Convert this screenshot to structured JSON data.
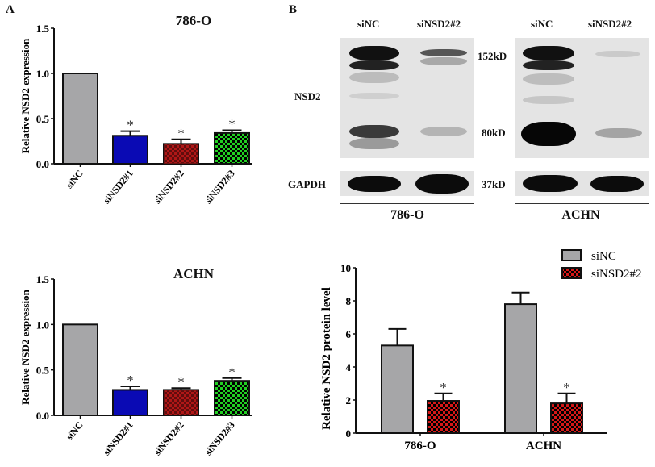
{
  "panels": {
    "a": "A",
    "b": "B"
  },
  "chart_data": [
    {
      "type": "bar",
      "title": "786-O",
      "xlabel": "",
      "ylabel": "Relative NSD2 expression",
      "ylim": [
        0,
        1.5
      ],
      "yticks": [
        "0.0",
        "0.5",
        "1.0",
        "1.5"
      ],
      "categories": [
        "siNC",
        "siNSD2#1",
        "siNSD2#2",
        "siNSD2#3"
      ],
      "values": [
        1.0,
        0.31,
        0.22,
        0.34
      ],
      "errors": [
        0,
        0.05,
        0.05,
        0.03
      ],
      "significance": [
        "",
        "*",
        "*",
        "*"
      ],
      "colors": [
        "#a6a6a8",
        "#0a0ab4",
        "#b01818",
        "#22d022"
      ],
      "grid": false
    },
    {
      "type": "bar",
      "title": "ACHN",
      "xlabel": "",
      "ylabel": "Relative NSD2 expression",
      "ylim": [
        0,
        1.5
      ],
      "yticks": [
        "0.0",
        "0.5",
        "1.0",
        "1.5"
      ],
      "categories": [
        "siNC",
        "siNSD2#1",
        "siNSD2#2",
        "siNSD2#3"
      ],
      "values": [
        1.0,
        0.28,
        0.28,
        0.38
      ],
      "errors": [
        0,
        0.04,
        0.02,
        0.03
      ],
      "significance": [
        "",
        "*",
        "*",
        "*"
      ],
      "colors": [
        "#a6a6a8",
        "#0a0ab4",
        "#b01818",
        "#22d022"
      ],
      "grid": false
    },
    {
      "type": "bar",
      "title": "",
      "xlabel": "",
      "ylabel": "Relative NSD2 protein level",
      "ylim": [
        0,
        10
      ],
      "yticks": [
        "0",
        "2",
        "4",
        "6",
        "8",
        "10"
      ],
      "categories": [
        "786-O",
        "ACHN"
      ],
      "series": [
        {
          "name": "siNC",
          "values": [
            5.3,
            7.8
          ],
          "errors": [
            1.0,
            0.7
          ],
          "color": "#a6a6a8",
          "significance": [
            "",
            ""
          ]
        },
        {
          "name": "siNSD2#2",
          "values": [
            1.95,
            1.8
          ],
          "errors": [
            0.45,
            0.6
          ],
          "color": "#d81818",
          "significance": [
            "*",
            "*"
          ]
        }
      ],
      "legend_position": "top-right",
      "grid": false
    }
  ],
  "western_blot": {
    "lanes_786O": [
      "siNC",
      "siNSD2#2"
    ],
    "lanes_ACHN": [
      "siNC",
      "siNSD2#2"
    ],
    "row_labels": {
      "nsd2": "NSD2",
      "gapdh": "GAPDH"
    },
    "markers": {
      "m152": "152kD",
      "m80": "80kD",
      "m37": "37kD"
    },
    "cell_lines": {
      "left": "786-O",
      "right": "ACHN"
    }
  }
}
